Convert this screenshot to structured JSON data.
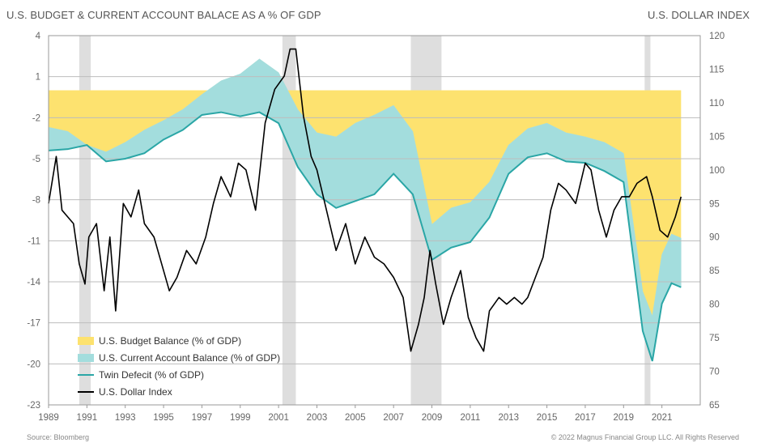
{
  "header": {
    "title": "U.S. BUDGET & CURRENT ACCOUNT BALACE AS A % OF GDP",
    "right_title": "U.S. DOLLAR INDEX"
  },
  "footer": {
    "source": "Source: Bloomberg",
    "copyright": "© 2022 Magnus Financial Group LLC. All Rights Reserved"
  },
  "colors": {
    "budget": "#fde26f",
    "current_account": "#a3dddd",
    "twin_deficit": "#2aa6a6",
    "dollar": "#000000",
    "recession": "#dedede",
    "grid": "#bdbdbd"
  },
  "legend": [
    {
      "label": "U.S. Budget Balance (% of GDP)",
      "kind": "area",
      "color": "#fde26f"
    },
    {
      "label": "U.S. Current Account Balance (% of GDP)",
      "kind": "area",
      "color": "#a3dddd"
    },
    {
      "label": "Twin Defecit (% of GDP)",
      "kind": "line",
      "color": "#2aa6a6"
    },
    {
      "label": "U.S. Dollar Index",
      "kind": "line",
      "color": "#000000"
    }
  ],
  "chart_data": {
    "type": "area",
    "xlim": [
      1989,
      2023
    ],
    "x_ticks": [
      "1989",
      "1991",
      "1993",
      "1995",
      "1997",
      "1999",
      "2001",
      "2003",
      "2005",
      "2007",
      "2009",
      "2011",
      "2013",
      "2015",
      "2017",
      "2019",
      "2021"
    ],
    "left_axis": {
      "ylim": [
        -23,
        4
      ],
      "ticks": [
        "4",
        "1",
        "-2",
        "-5",
        "-8",
        "-11",
        "-14",
        "-17",
        "-20",
        "-23"
      ]
    },
    "right_axis": {
      "ylim": [
        65,
        120
      ],
      "ticks": [
        "120",
        "115",
        "110",
        "105",
        "100",
        "95",
        "90",
        "85",
        "80",
        "75",
        "70",
        "65"
      ]
    },
    "grid": true,
    "legend_position": "bottom-left",
    "recessions": [
      [
        1990.6,
        1991.2
      ],
      [
        2001.2,
        2001.9
      ],
      [
        2007.9,
        2009.5
      ],
      [
        2020.1,
        2020.4
      ]
    ],
    "series": [
      {
        "name": "U.S. Budget Balance (% of GDP)",
        "axis": "left",
        "x": [
          1989,
          1990,
          1991,
          1992,
          1993,
          1994,
          1995,
          1996,
          1997,
          1998,
          1999,
          2000,
          2001,
          2002,
          2003,
          2004,
          2005,
          2006,
          2007,
          2008,
          2009,
          2010,
          2011,
          2012,
          2013,
          2014,
          2015,
          2016,
          2017,
          2018,
          2019,
          2020,
          2020.5,
          2021,
          2021.5,
          2022
        ],
        "values": [
          -2.7,
          -3.0,
          -4.0,
          -4.5,
          -3.8,
          -2.9,
          -2.2,
          -1.4,
          -0.3,
          0.7,
          1.2,
          2.3,
          1.3,
          -1.4,
          -3.1,
          -3.4,
          -2.4,
          -1.8,
          -1.1,
          -3.0,
          -9.8,
          -8.6,
          -8.2,
          -6.7,
          -4.0,
          -2.8,
          -2.4,
          -3.1,
          -3.4,
          -3.8,
          -4.6,
          -14.7,
          -16.5,
          -12.0,
          -10.5,
          -10.8
        ]
      },
      {
        "name": "U.S. Current Account Balance (% of GDP)",
        "axis": "left",
        "x": [
          1989,
          1990,
          1991,
          1992,
          1993,
          1994,
          1995,
          1996,
          1997,
          1998,
          1999,
          2000,
          2001,
          2002,
          2003,
          2004,
          2005,
          2006,
          2007,
          2008,
          2009,
          2010,
          2011,
          2012,
          2013,
          2014,
          2015,
          2016,
          2017,
          2018,
          2019,
          2020,
          2021,
          2022
        ],
        "values": [
          -1.7,
          -1.3,
          0.0,
          -0.7,
          -1.2,
          -1.7,
          -1.4,
          -1.5,
          -1.5,
          -2.3,
          -3.1,
          -3.9,
          -3.7,
          -4.2,
          -4.5,
          -5.2,
          -5.7,
          -5.8,
          -5.0,
          -4.6,
          -2.6,
          -2.9,
          -2.9,
          -2.6,
          -2.1,
          -2.1,
          -2.2,
          -2.1,
          -1.9,
          -2.1,
          -2.1,
          -2.9,
          -3.6,
          -3.6
        ]
      },
      {
        "name": "Twin Defecit (% of GDP)",
        "axis": "left",
        "x": [
          1989,
          1990,
          1991,
          1992,
          1993,
          1994,
          1995,
          1996,
          1997,
          1998,
          1999,
          2000,
          2001,
          2002,
          2003,
          2004,
          2005,
          2006,
          2007,
          2008,
          2009,
          2010,
          2011,
          2012,
          2013,
          2014,
          2015,
          2016,
          2017,
          2018,
          2019,
          2020,
          2020.5,
          2021,
          2021.5,
          2022
        ],
        "values": [
          -4.4,
          -4.3,
          -4.0,
          -5.2,
          -5.0,
          -4.6,
          -3.6,
          -2.9,
          -1.8,
          -1.6,
          -1.9,
          -1.6,
          -2.4,
          -5.6,
          -7.6,
          -8.6,
          -8.1,
          -7.6,
          -6.1,
          -7.6,
          -12.4,
          -11.5,
          -11.1,
          -9.3,
          -6.1,
          -4.9,
          -4.6,
          -5.2,
          -5.3,
          -5.9,
          -6.7,
          -17.6,
          -19.8,
          -15.6,
          -14.1,
          -14.4
        ]
      },
      {
        "name": "U.S. Dollar Index",
        "axis": "right",
        "x": [
          1989,
          1989.4,
          1989.7,
          1990,
          1990.3,
          1990.6,
          1990.9,
          1991.1,
          1991.5,
          1991.9,
          1992.2,
          1992.5,
          1992.9,
          1993.3,
          1993.7,
          1994.0,
          1994.5,
          1995.0,
          1995.3,
          1995.7,
          1996.2,
          1996.7,
          1997.2,
          1997.6,
          1998.0,
          1998.5,
          1998.9,
          1999.3,
          1999.8,
          2000.3,
          2000.8,
          2001.3,
          2001.6,
          2001.9,
          2002.3,
          2002.7,
          2003.0,
          2003.5,
          2004.0,
          2004.5,
          2005.0,
          2005.5,
          2006.0,
          2006.5,
          2007.0,
          2007.5,
          2007.9,
          2008.3,
          2008.6,
          2008.9,
          2009.2,
          2009.6,
          2010.0,
          2010.5,
          2010.9,
          2011.3,
          2011.7,
          2012.0,
          2012.5,
          2012.9,
          2013.3,
          2013.7,
          2014.0,
          2014.4,
          2014.8,
          2015.2,
          2015.6,
          2016.0,
          2016.5,
          2017.0,
          2017.3,
          2017.7,
          2018.1,
          2018.5,
          2018.9,
          2019.3,
          2019.7,
          2020.2,
          2020.5,
          2020.9,
          2021.3,
          2021.7,
          2022.0
        ],
        "values": [
          95,
          102,
          94,
          93,
          92,
          86,
          83,
          90,
          92,
          82,
          90,
          79,
          95,
          93,
          97,
          92,
          90,
          85,
          82,
          84,
          88,
          86,
          90,
          95,
          99,
          96,
          101,
          100,
          94,
          107,
          112,
          114,
          118,
          118,
          108,
          102,
          100,
          94,
          88,
          92,
          86,
          90,
          87,
          86,
          84,
          81,
          73,
          77,
          81,
          88,
          83,
          77,
          81,
          85,
          78,
          75,
          73,
          79,
          81,
          80,
          81,
          80,
          81,
          84,
          87,
          94,
          98,
          97,
          95,
          101,
          100,
          94,
          90,
          94,
          96,
          96,
          98,
          99,
          96,
          91,
          90,
          93,
          96
        ]
      }
    ]
  }
}
